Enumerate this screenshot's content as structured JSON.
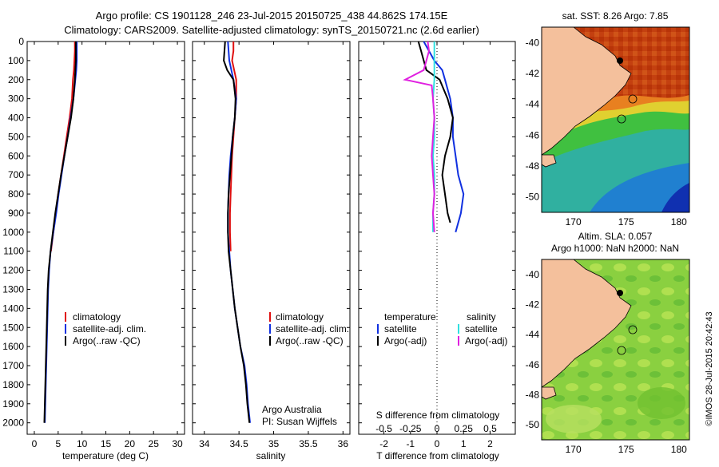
{
  "header": {
    "line1": "Argo profile: CS 1901128_246 23-Jul-2015 20150725_438 44.862S 174.15E",
    "line2": "Climatology: CARS2009. Satellite-adjusted climatology: synTS_20150721.nc (2.6d earlier)"
  },
  "credit": {
    "org": "Argo Australia",
    "pi": "PI: Susan Wijffels",
    "stamp": "©IMOS 28-Jul-2015 20:42:43"
  },
  "colors": {
    "climatology": "#e01010",
    "satellite": "#1030e0",
    "argo": "#000000",
    "sal_satellite": "#30e0e0",
    "sal_argo": "#e020e0",
    "land": "#f4c09c"
  },
  "depth_axis": {
    "ticks": [
      0,
      100,
      200,
      300,
      400,
      500,
      600,
      700,
      800,
      900,
      1000,
      1100,
      1200,
      1300,
      1400,
      1500,
      1600,
      1700,
      1800,
      1900,
      2000
    ]
  },
  "chart_data": [
    {
      "type": "line",
      "panel": "temperature",
      "xlabel": "temperature (deg C)",
      "xticks": [
        0,
        5,
        10,
        15,
        20,
        25,
        30
      ],
      "xlim": [
        -1.5,
        31.5
      ],
      "ylim": [
        0,
        2060
      ],
      "legend": [
        "climatology",
        "satellite-adj. clim.",
        "Argo(..raw -QC)"
      ],
      "series": [
        {
          "name": "climatology",
          "color": "climatology",
          "points": [
            [
              8.5,
              0
            ],
            [
              8.5,
              50
            ],
            [
              8.4,
              100
            ],
            [
              8.3,
              150
            ],
            [
              8.1,
              200
            ],
            [
              7.9,
              300
            ],
            [
              7.4,
              400
            ],
            [
              6.8,
              500
            ],
            [
              6.2,
              600
            ],
            [
              5.6,
              700
            ],
            [
              5.0,
              800
            ],
            [
              4.5,
              900
            ],
            [
              4.0,
              1000
            ],
            [
              3.5,
              1100
            ]
          ]
        },
        {
          "name": "satellite-adj. clim.",
          "color": "satellite",
          "points": [
            [
              8.9,
              0
            ],
            [
              8.9,
              50
            ],
            [
              8.9,
              100
            ],
            [
              8.8,
              150
            ],
            [
              8.6,
              200
            ],
            [
              8.2,
              300
            ],
            [
              7.6,
              400
            ],
            [
              7.0,
              500
            ],
            [
              6.3,
              600
            ],
            [
              5.7,
              700
            ],
            [
              5.1,
              800
            ],
            [
              4.6,
              900
            ],
            [
              4.0,
              1000
            ],
            [
              3.4,
              1100
            ],
            [
              3.1,
              1200
            ],
            [
              2.9,
              1300
            ],
            [
              2.8,
              1400
            ],
            [
              2.7,
              1500
            ],
            [
              2.6,
              1600
            ],
            [
              2.5,
              1700
            ],
            [
              2.4,
              1800
            ],
            [
              2.3,
              1900
            ],
            [
              2.2,
              2000
            ]
          ]
        },
        {
          "name": "Argo(..raw -QC)",
          "color": "argo",
          "points": [
            [
              8.7,
              0
            ],
            [
              8.7,
              50
            ],
            [
              8.7,
              100
            ],
            [
              8.6,
              150
            ],
            [
              8.5,
              200
            ],
            [
              8.2,
              300
            ],
            [
              7.7,
              400
            ],
            [
              7.0,
              500
            ],
            [
              6.3,
              600
            ],
            [
              5.6,
              700
            ],
            [
              5.0,
              800
            ],
            [
              4.4,
              900
            ],
            [
              3.9,
              1000
            ],
            [
              3.4,
              1100
            ],
            [
              3.0,
              1200
            ],
            [
              2.8,
              1300
            ],
            [
              2.7,
              1400
            ],
            [
              2.6,
              1500
            ],
            [
              2.5,
              1600
            ],
            [
              2.4,
              1700
            ],
            [
              2.3,
              1800
            ],
            [
              2.2,
              1900
            ],
            [
              2.1,
              2000
            ]
          ]
        }
      ]
    },
    {
      "type": "line",
      "panel": "salinity",
      "xlabel": "salinity",
      "xticks": [
        34,
        34.5,
        35,
        35.5,
        36
      ],
      "xlim": [
        33.83,
        36.1
      ],
      "ylim": [
        0,
        2060
      ],
      "legend": [
        "climatology",
        "satellite-adj. clim.",
        "Argo(..raw -QC)"
      ],
      "series": [
        {
          "name": "climatology",
          "color": "climatology",
          "points": [
            [
              34.42,
              0
            ],
            [
              34.42,
              50
            ],
            [
              34.4,
              100
            ],
            [
              34.43,
              150
            ],
            [
              34.46,
              200
            ],
            [
              34.46,
              300
            ],
            [
              34.44,
              400
            ],
            [
              34.42,
              500
            ],
            [
              34.4,
              600
            ],
            [
              34.39,
              700
            ],
            [
              34.38,
              800
            ],
            [
              34.37,
              900
            ],
            [
              34.37,
              1000
            ],
            [
              34.38,
              1100
            ]
          ]
        },
        {
          "name": "satellite-adj. clim.",
          "color": "satellite",
          "points": [
            [
              34.34,
              0
            ],
            [
              34.36,
              100
            ],
            [
              34.42,
              200
            ],
            [
              34.46,
              300
            ],
            [
              34.44,
              400
            ],
            [
              34.41,
              500
            ],
            [
              34.38,
              600
            ],
            [
              34.36,
              700
            ],
            [
              34.35,
              800
            ],
            [
              34.34,
              900
            ],
            [
              34.34,
              1000
            ],
            [
              34.36,
              1100
            ],
            [
              34.38,
              1200
            ],
            [
              34.41,
              1300
            ],
            [
              34.44,
              1400
            ],
            [
              34.48,
              1500
            ],
            [
              34.52,
              1600
            ],
            [
              34.58,
              1700
            ],
            [
              34.61,
              1800
            ],
            [
              34.63,
              1900
            ],
            [
              34.66,
              2000
            ]
          ]
        },
        {
          "name": "Argo(..raw -QC)",
          "color": "argo",
          "points": [
            [
              34.3,
              0
            ],
            [
              34.28,
              100
            ],
            [
              34.33,
              150
            ],
            [
              34.42,
              200
            ],
            [
              34.45,
              300
            ],
            [
              34.44,
              400
            ],
            [
              34.41,
              500
            ],
            [
              34.39,
              600
            ],
            [
              34.37,
              700
            ],
            [
              34.35,
              800
            ],
            [
              34.34,
              900
            ],
            [
              34.34,
              1000
            ],
            [
              34.35,
              1100
            ],
            [
              34.38,
              1200
            ],
            [
              34.41,
              1300
            ],
            [
              34.44,
              1400
            ],
            [
              34.48,
              1500
            ],
            [
              34.52,
              1600
            ],
            [
              34.57,
              1700
            ],
            [
              34.6,
              1800
            ],
            [
              34.62,
              1900
            ],
            [
              34.65,
              2000
            ]
          ]
        }
      ]
    },
    {
      "type": "line",
      "panel": "difference",
      "xlabel": "T difference from climatology",
      "xlabel2": "S difference from climatology",
      "xticks": [
        -2,
        -1,
        0,
        1,
        2
      ],
      "xticks_s": [
        "-0.5",
        "-0.25",
        "0",
        "0.25",
        "0.5"
      ],
      "xlim": [
        -2.95,
        2.95
      ],
      "ylim": [
        0,
        2060
      ],
      "legend_titles": [
        "temperature",
        "salinity"
      ],
      "legend": [
        "satellite",
        "Argo(-adj)",
        "satellite",
        "Argo(-adj)"
      ],
      "series": [
        {
          "name": "satellite",
          "quantity": "temperature",
          "color": "satellite",
          "points": [
            [
              -0.5,
              0
            ],
            [
              -0.3,
              50
            ],
            [
              -0.1,
              100
            ],
            [
              0.2,
              150
            ],
            [
              0.3,
              200
            ],
            [
              0.5,
              300
            ],
            [
              0.6,
              400
            ],
            [
              0.6,
              500
            ],
            [
              0.7,
              600
            ],
            [
              0.8,
              700
            ],
            [
              1.0,
              800
            ],
            [
              0.9,
              900
            ],
            [
              0.7,
              1000
            ]
          ]
        },
        {
          "name": "Argo(-adj)",
          "quantity": "temperature",
          "color": "argo",
          "points": [
            [
              -0.7,
              0
            ],
            [
              -0.6,
              50
            ],
            [
              -0.5,
              100
            ],
            [
              -0.4,
              150
            ],
            [
              0.1,
              200
            ],
            [
              0.4,
              300
            ],
            [
              0.6,
              400
            ],
            [
              0.5,
              500
            ],
            [
              0.3,
              600
            ],
            [
              0.2,
              700
            ],
            [
              0.3,
              800
            ],
            [
              0.4,
              900
            ],
            [
              0.5,
              950
            ]
          ]
        },
        {
          "name": "satellite",
          "quantity": "salinity",
          "color": "sal_satellite",
          "points": [
            [
              -0.1,
              0
            ],
            [
              -0.1,
              100
            ],
            [
              -0.1,
              200
            ],
            [
              -0.15,
              300
            ],
            [
              -0.1,
              400
            ],
            [
              -0.1,
              500
            ],
            [
              -0.15,
              600
            ],
            [
              -0.1,
              700
            ],
            [
              -0.1,
              800
            ],
            [
              -0.15,
              900
            ],
            [
              -0.15,
              1000
            ]
          ]
        },
        {
          "name": "Argo(-adj)",
          "quantity": "salinity",
          "color": "sal_argo",
          "points": [
            [
              -0.35,
              0
            ],
            [
              -0.3,
              50
            ],
            [
              -0.5,
              150
            ],
            [
              -1.2,
              200
            ],
            [
              -0.2,
              230
            ],
            [
              -0.15,
              300
            ],
            [
              -0.1,
              400
            ],
            [
              -0.15,
              500
            ],
            [
              -0.2,
              600
            ],
            [
              -0.15,
              700
            ],
            [
              -0.1,
              800
            ],
            [
              -0.15,
              900
            ],
            [
              -0.1,
              1000
            ]
          ]
        }
      ]
    },
    {
      "type": "heatmap",
      "panel": "map_sst",
      "title": "sat. SST: 8.26 Argo: 7.85",
      "xticks": [
        170,
        175,
        180
      ],
      "yticks": [
        -40,
        -42,
        -44,
        -46,
        -48,
        -50
      ],
      "xlim": [
        167,
        181
      ],
      "ylim": [
        -51,
        -39
      ]
    },
    {
      "type": "heatmap",
      "panel": "map_sla",
      "title": "Altim. SLA: 0.057",
      "subtitle": "Argo h1000: NaN h2000: NaN",
      "xticks": [
        170,
        175,
        180
      ],
      "yticks": [
        -40,
        -42,
        -44,
        -46,
        -48,
        -50
      ],
      "xlim": [
        167,
        181
      ],
      "ylim": [
        -51,
        -39
      ]
    }
  ]
}
